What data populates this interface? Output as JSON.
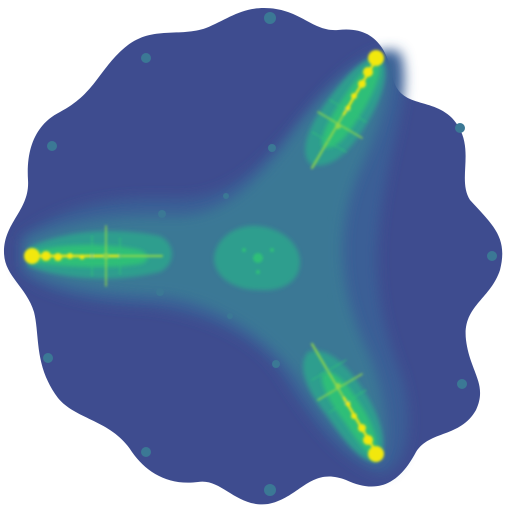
{
  "image": {
    "subject": "fractal-escape-time-image",
    "symmetry": "three-fold",
    "palette": {
      "background": "#ffffff",
      "outer": "#3e4c8f",
      "band_1": "#3b5f96",
      "band_2": "#3b7895",
      "band_3": "#2f9e8e",
      "band_4": "#2fbf78",
      "band_5": "#8fd64a",
      "core": "#f2e80f"
    }
  }
}
